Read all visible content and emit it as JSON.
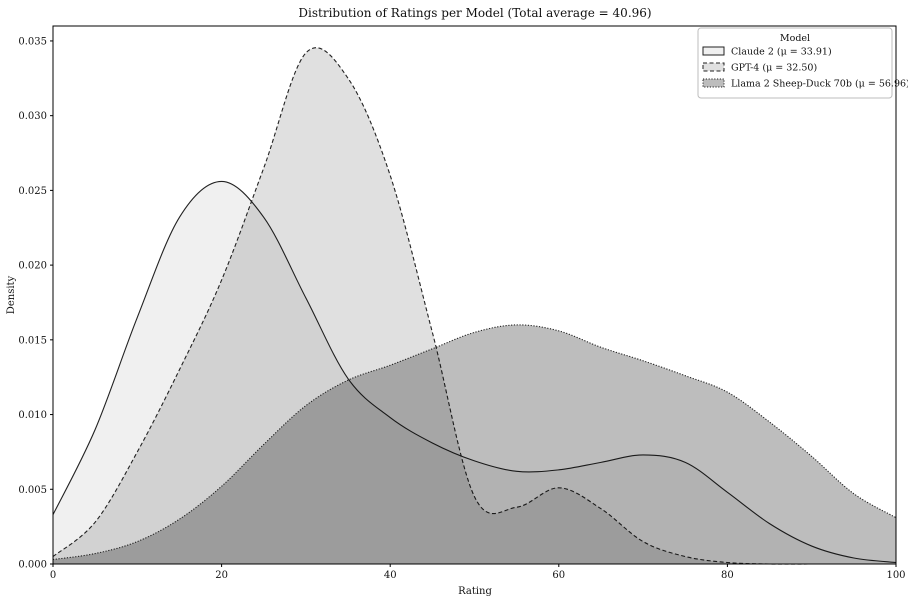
{
  "chart_data": {
    "type": "area",
    "title": "Distribution of Ratings per Model (Total average = 40.96)",
    "xlabel": "Rating",
    "ylabel": "Density",
    "xlim": [
      0,
      100
    ],
    "ylim": [
      0,
      0.036
    ],
    "x_ticks": [
      0,
      20,
      40,
      60,
      80,
      100
    ],
    "x_tick_labels": [
      "0",
      "20",
      "40",
      "60",
      "80",
      "100"
    ],
    "y_ticks": [
      0,
      0.005,
      0.01,
      0.015,
      0.02,
      0.025,
      0.03,
      0.035
    ],
    "y_tick_labels": [
      "0.000",
      "0.005",
      "0.010",
      "0.015",
      "0.020",
      "0.025",
      "0.030",
      "0.035"
    ],
    "grid": false,
    "legend": {
      "title": "Model",
      "position": "top-right"
    },
    "series": [
      {
        "name": "Claude 2 (μ = 33.91)",
        "line_style": "solid",
        "fill_color": "#f0f0f0",
        "points": [
          [
            0,
            0.0033
          ],
          [
            5,
            0.009
          ],
          [
            10,
            0.0165
          ],
          [
            15,
            0.0232
          ],
          [
            20,
            0.0256
          ],
          [
            25,
            0.0232
          ],
          [
            30,
            0.0178
          ],
          [
            35,
            0.0124
          ],
          [
            40,
            0.0098
          ],
          [
            45,
            0.0081
          ],
          [
            50,
            0.0069
          ],
          [
            55,
            0.0062
          ],
          [
            60,
            0.0063
          ],
          [
            65,
            0.0068
          ],
          [
            70,
            0.0073
          ],
          [
            75,
            0.0068
          ],
          [
            80,
            0.0048
          ],
          [
            85,
            0.0027
          ],
          [
            90,
            0.0012
          ],
          [
            95,
            0.0004
          ],
          [
            100,
            0.0001
          ]
        ]
      },
      {
        "name": "GPT-4 (μ = 32.50)",
        "line_style": "dashed",
        "fill_color": "#e0e0e0",
        "points": [
          [
            0,
            0.0005
          ],
          [
            5,
            0.0028
          ],
          [
            10,
            0.0075
          ],
          [
            15,
            0.013
          ],
          [
            20,
            0.019
          ],
          [
            25,
            0.0265
          ],
          [
            30,
            0.0342
          ],
          [
            35,
            0.0325
          ],
          [
            40,
            0.026
          ],
          [
            45,
            0.0155
          ],
          [
            50,
            0.0045
          ],
          [
            55,
            0.0038
          ],
          [
            60,
            0.0051
          ],
          [
            65,
            0.0037
          ],
          [
            70,
            0.0015
          ],
          [
            75,
            0.0005
          ],
          [
            80,
            0.0001
          ],
          [
            85,
            0
          ],
          [
            90,
            0
          ],
          [
            95,
            0
          ],
          [
            100,
            0
          ]
        ]
      },
      {
        "name": "Llama 2 Sheep-Duck 70b (μ = 56.96)",
        "line_style": "dotted",
        "fill_color": "#bdbdbd",
        "points": [
          [
            0,
            0.0003
          ],
          [
            5,
            0.0007
          ],
          [
            10,
            0.0015
          ],
          [
            15,
            0.003
          ],
          [
            20,
            0.0052
          ],
          [
            25,
            0.008
          ],
          [
            30,
            0.0106
          ],
          [
            35,
            0.0123
          ],
          [
            40,
            0.0133
          ],
          [
            45,
            0.0144
          ],
          [
            50,
            0.0155
          ],
          [
            55,
            0.016
          ],
          [
            60,
            0.0156
          ],
          [
            65,
            0.0145
          ],
          [
            70,
            0.0136
          ],
          [
            75,
            0.0126
          ],
          [
            80,
            0.0115
          ],
          [
            85,
            0.0095
          ],
          [
            90,
            0.0072
          ],
          [
            95,
            0.0047
          ],
          [
            100,
            0.0031
          ]
        ]
      }
    ]
  }
}
